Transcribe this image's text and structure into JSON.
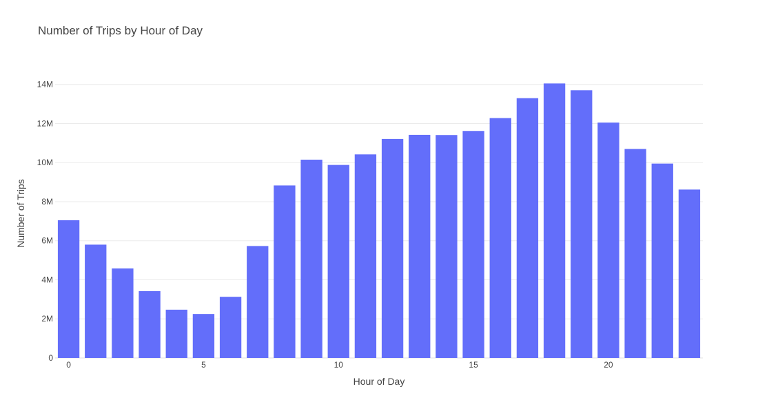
{
  "chart_data": {
    "type": "bar",
    "title": "Number of Trips by Hour of Day",
    "xlabel": "Hour of Day",
    "ylabel": "Number of Trips",
    "x": [
      0,
      1,
      2,
      3,
      4,
      5,
      6,
      7,
      8,
      9,
      10,
      11,
      12,
      13,
      14,
      15,
      16,
      17,
      18,
      19,
      20,
      21,
      22,
      23
    ],
    "values": [
      7050000,
      5800000,
      4580000,
      3420000,
      2470000,
      2250000,
      3130000,
      5730000,
      8830000,
      10150000,
      9880000,
      10420000,
      11210000,
      11420000,
      11410000,
      11620000,
      12280000,
      13300000,
      14050000,
      13700000,
      12050000,
      10700000,
      9950000,
      8620000
    ],
    "xlim": [
      -0.5,
      23.5
    ],
    "ylim": [
      0,
      14800000
    ],
    "x_ticks": [
      0,
      5,
      10,
      15,
      20
    ],
    "x_tick_labels": [
      "0",
      "5",
      "10",
      "15",
      "20"
    ],
    "y_ticks": [
      0,
      2000000,
      4000000,
      6000000,
      8000000,
      10000000,
      12000000,
      14000000
    ],
    "y_tick_labels": [
      "0",
      "2M",
      "4M",
      "6M",
      "8M",
      "10M",
      "12M",
      "14M"
    ],
    "bar_color": "#636efa",
    "grid": true,
    "legend": false
  }
}
